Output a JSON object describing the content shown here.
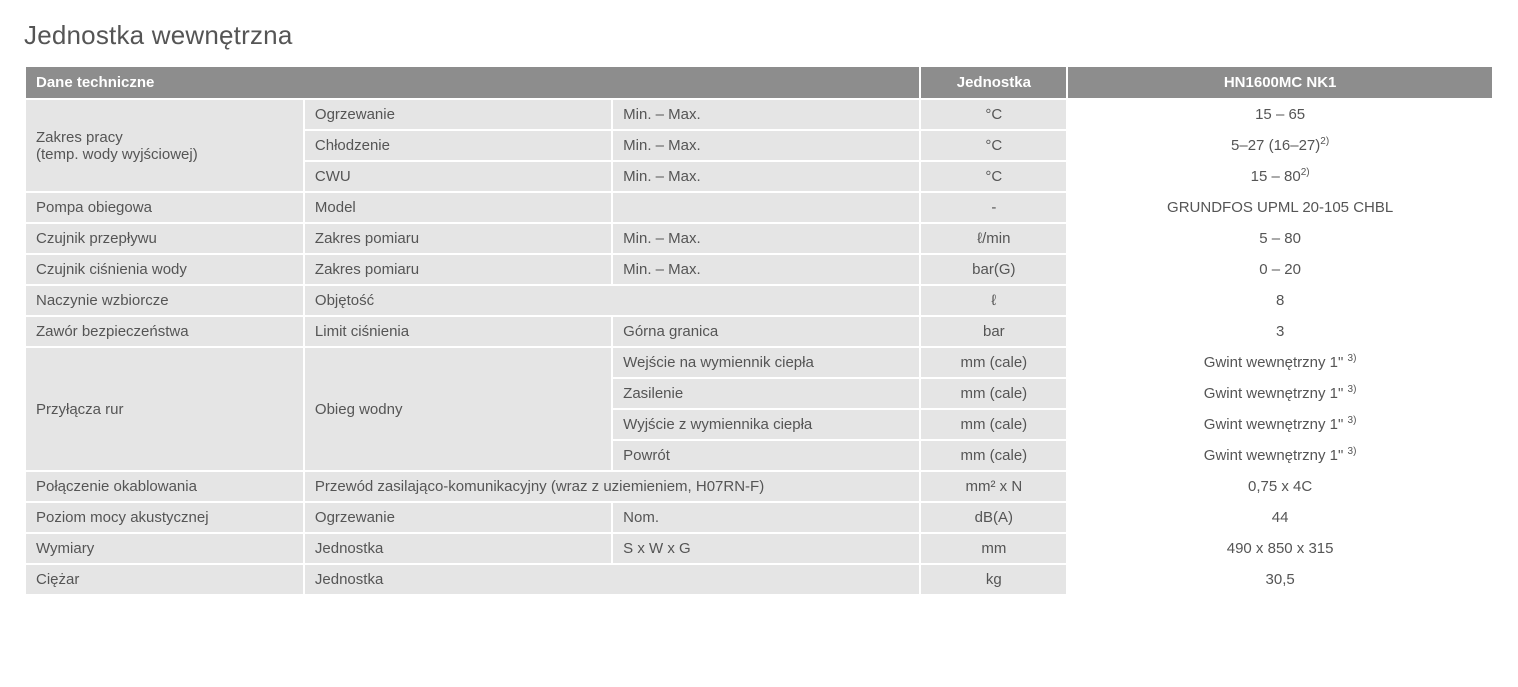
{
  "title": "Jednostka wewnętrzna",
  "header": {
    "tech_data": "Dane techniczne",
    "unit": "Jednostka",
    "model": "HN1600MC NK1"
  },
  "colors": {
    "header_bg": "#8d8d8d",
    "header_fg": "#ffffff",
    "label_bg": "#e5e5e5",
    "value_bg": "#ffffff",
    "border": "#ffffff",
    "bottom_rule": "#8d8d8d",
    "text": "#555555"
  },
  "rows": {
    "range_label": "Zakres pracy\n(temp. wody wyjściowej)",
    "range_heating": {
      "sub": "Ogrzewanie",
      "cond": "Min. – Max.",
      "unit": "°C",
      "value": "15 – 65"
    },
    "range_cooling": {
      "sub": "Chłodzenie",
      "cond": "Min. – Max.",
      "unit": "°C",
      "value": "5–27 (16–27)",
      "sup": "2)"
    },
    "range_dhw": {
      "sub": "CWU",
      "cond": "Min. – Max.",
      "unit": "°C",
      "value": "15 – 80",
      "sup": "2)"
    },
    "pump": {
      "label": "Pompa obiegowa",
      "sub": "Model",
      "cond": "",
      "unit": "-",
      "value": "GRUNDFOS UPML 20-105 CHBL"
    },
    "flow_sensor": {
      "label": "Czujnik przepływu",
      "sub": "Zakres pomiaru",
      "cond": "Min. – Max.",
      "unit": "ℓ/min",
      "value": "5 – 80"
    },
    "press_sensor": {
      "label": "Czujnik ciśnienia wody",
      "sub": "Zakres pomiaru",
      "cond": "Min. – Max.",
      "unit": "bar(G)",
      "value": "0 – 20"
    },
    "exp_vessel": {
      "label": "Naczynie wzbiorcze",
      "sub": "Objętość",
      "unit": "ℓ",
      "value": "8"
    },
    "safety_valve": {
      "label": "Zawór bezpieczeństwa",
      "sub": "Limit ciśnienia",
      "cond": "Górna granica",
      "unit": "bar",
      "value": "3"
    },
    "pipes_label": "Przyłącza rur",
    "pipes_sub": "Obieg wodny",
    "pipe1": {
      "cond": "Wejście na wymiennik ciepła",
      "unit": "mm (cale)",
      "value": "Gwint wewnętrzny 1\"",
      "sup": "3)"
    },
    "pipe2": {
      "cond": "Zasilenie",
      "unit": "mm (cale)",
      "value": "Gwint wewnętrzny 1\"",
      "sup": "3)"
    },
    "pipe3": {
      "cond": "Wyjście z wymiennika ciepła",
      "unit": "mm (cale)",
      "value": "Gwint wewnętrzny 1\"",
      "sup": "3)"
    },
    "pipe4": {
      "cond": "Powrót",
      "unit": "mm (cale)",
      "value": "Gwint wewnętrzny 1\"",
      "sup": "3)"
    },
    "wiring": {
      "label": "Połączenie okablowania",
      "sub": "Przewód zasilająco-komunikacyjny (wraz z uziemieniem, H07RN-F)",
      "unit": "mm² x N",
      "value": "0,75 x 4C"
    },
    "sound": {
      "label": "Poziom mocy akustycznej",
      "sub": "Ogrzewanie",
      "cond": "Nom.",
      "unit": "dB(A)",
      "value": "44"
    },
    "dims": {
      "label": "Wymiary",
      "sub": "Jednostka",
      "cond": "S x W x G",
      "unit": "mm",
      "value": "490 x 850 x 315"
    },
    "weight": {
      "label": "Ciężar",
      "sub": "Jednostka",
      "unit": "kg",
      "value": "30,5"
    }
  }
}
